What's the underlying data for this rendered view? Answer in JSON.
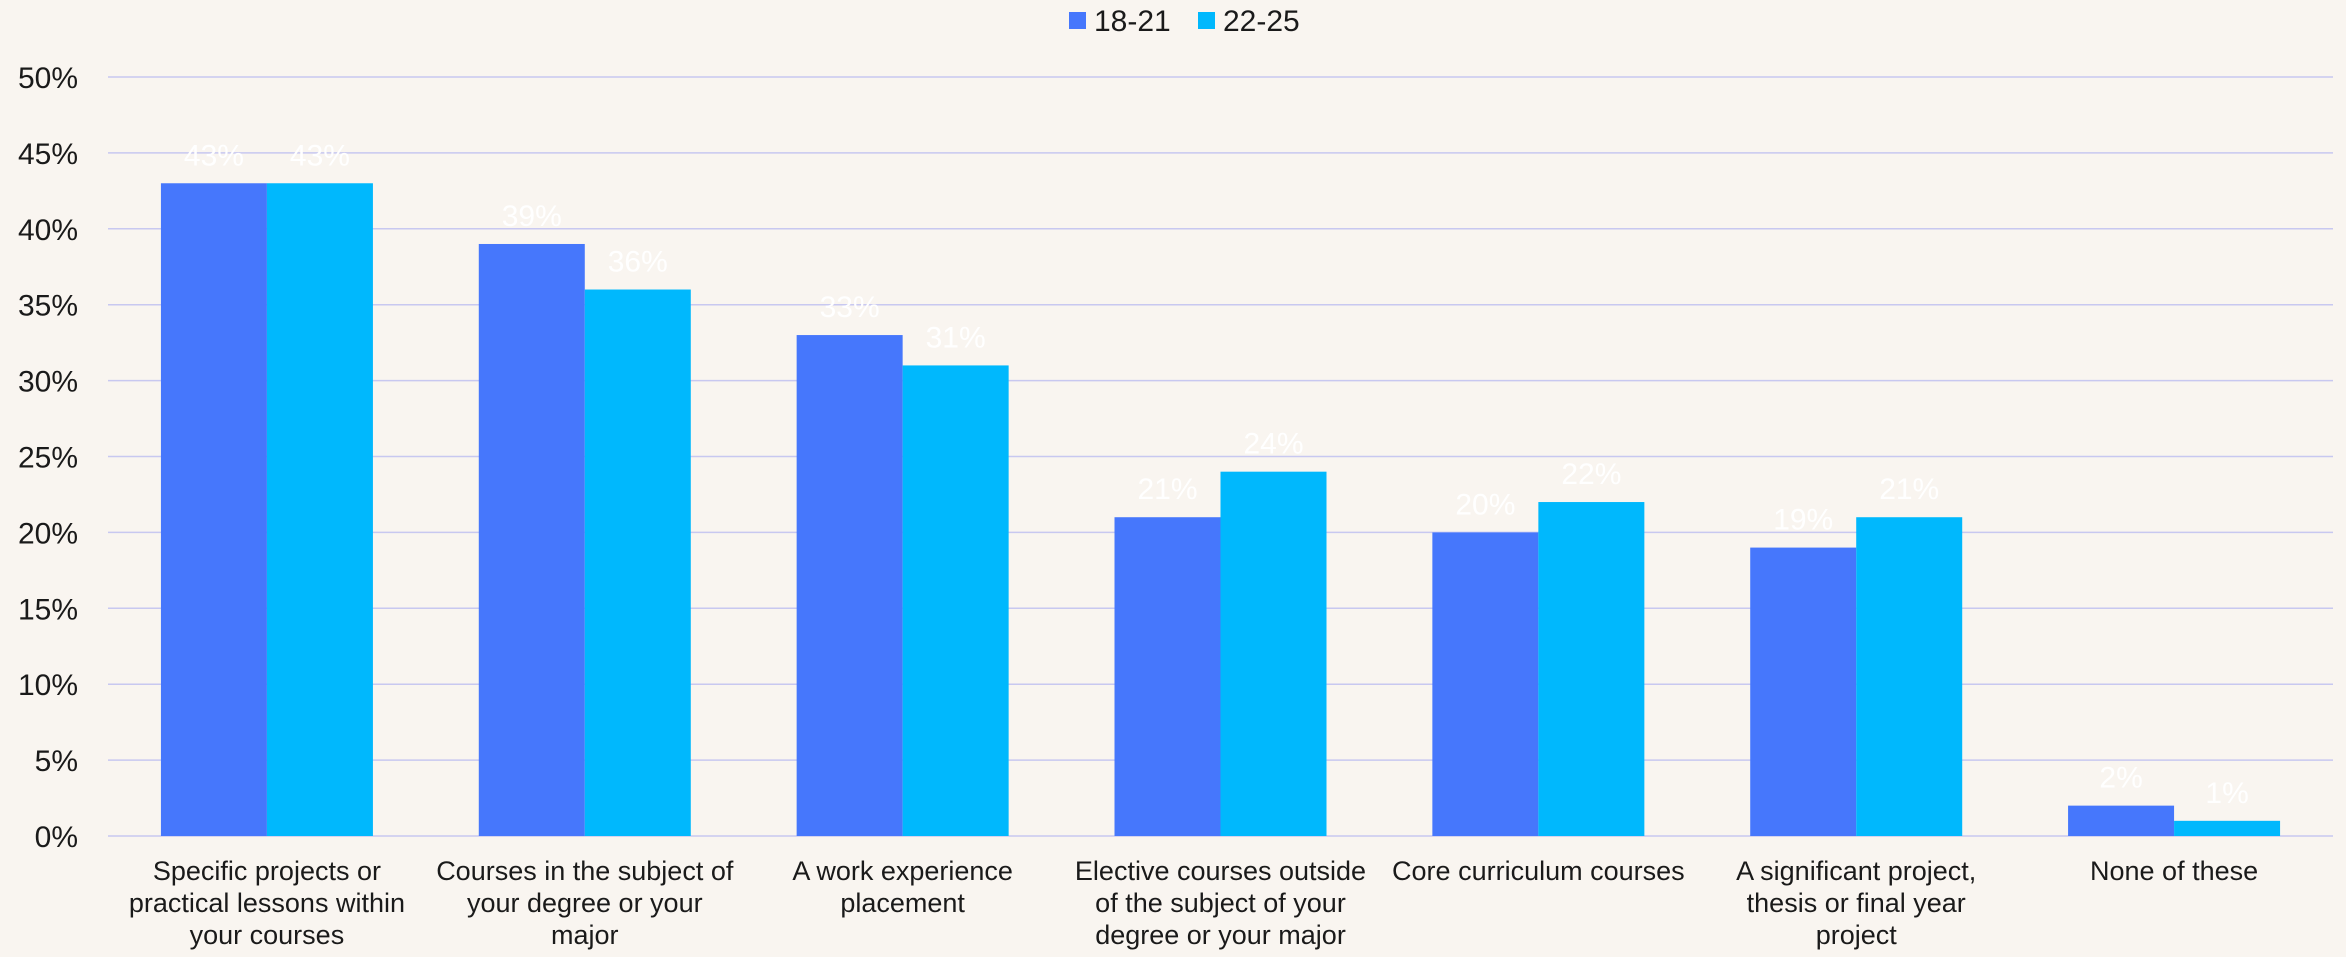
{
  "colors": {
    "background": "#f9f5f0",
    "gridline": "#c8c8f0",
    "axis_text": "#1a1a1a",
    "data_label": "#ffffff"
  },
  "chart_data": {
    "type": "bar",
    "categories": [
      [
        "Specific projects or",
        "practical lessons within",
        "your courses"
      ],
      [
        "Courses in the subject of",
        "your degree or your",
        "major"
      ],
      [
        "A work experience",
        "placement"
      ],
      [
        "Elective courses outside",
        "of the subject of your",
        "degree or your major"
      ],
      [
        "Core curriculum courses"
      ],
      [
        "A significant project,",
        "thesis or final year",
        "project"
      ],
      [
        "None of these"
      ]
    ],
    "series": [
      {
        "name": "18-21",
        "color": "#4677fc",
        "values": [
          43,
          39,
          33,
          21,
          20,
          19,
          2
        ]
      },
      {
        "name": "22-25",
        "color": "#00b8fd",
        "values": [
          43,
          36,
          31,
          24,
          22,
          21,
          1
        ]
      }
    ],
    "data_labels": [
      [
        "43%",
        "39%",
        "33%",
        "21%",
        "20%",
        "19%",
        "2%"
      ],
      [
        "43%",
        "36%",
        "31%",
        "24%",
        "22%",
        "21%",
        "1%"
      ]
    ],
    "ylim": [
      0,
      50
    ],
    "yticks": [
      0,
      5,
      10,
      15,
      20,
      25,
      30,
      35,
      40,
      45,
      50
    ],
    "ytick_labels": [
      "0%",
      "5%",
      "10%",
      "15%",
      "20%",
      "25%",
      "30%",
      "35%",
      "40%",
      "45%",
      "50%"
    ],
    "legend_position": "top-center",
    "grid": true
  }
}
